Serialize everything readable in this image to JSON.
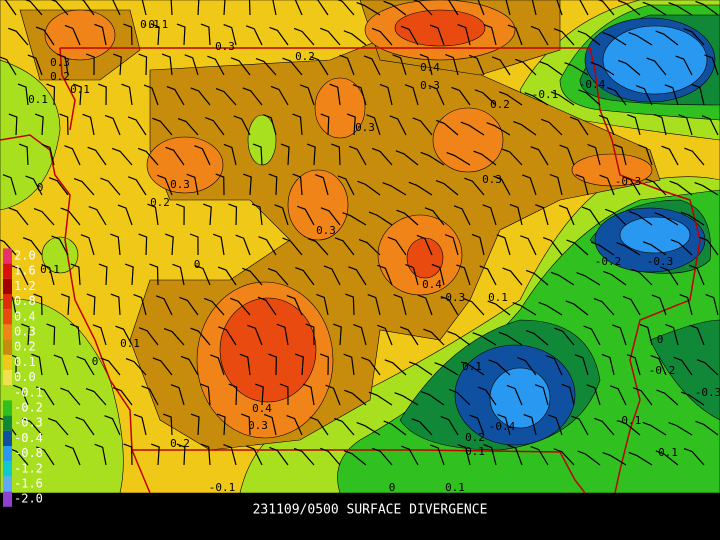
{
  "title": "231109/0500 SURFACE DIVERGENCE",
  "legend": [
    {
      "label": "2.0",
      "color": "#e8306a"
    },
    {
      "label": "1.6",
      "color": "#d81010"
    },
    {
      "label": "1.2",
      "color": "#a00000"
    },
    {
      "label": "0.8",
      "color": "#e02a0a"
    },
    {
      "label": "0.4",
      "color": "#e84a10"
    },
    {
      "label": "0.3",
      "color": "#f08418"
    },
    {
      "label": "0.2",
      "color": "#c88c0c"
    },
    {
      "label": "0.1",
      "color": "#f0c818"
    },
    {
      "label": "0.0",
      "color": "#f0e050"
    },
    {
      "label": "-0.1",
      "color": "#a8e020"
    },
    {
      "label": "-0.2",
      "color": "#30c020"
    },
    {
      "label": "-0.3",
      "color": "#108838"
    },
    {
      "label": "-0.4",
      "color": "#1050a0"
    },
    {
      "label": "-0.8",
      "color": "#2898f0"
    },
    {
      "label": "-1.2",
      "color": "#10c8d0"
    },
    {
      "label": "-1.6",
      "color": "#60a8f8"
    },
    {
      "label": "-2.0",
      "color": "#9040d0"
    }
  ],
  "contour_labels": [
    "0.1",
    "0.3",
    "0.2",
    "0.3",
    "0.2",
    "0.1",
    "0.4",
    "0.3",
    "0.3",
    "0.1",
    "0.2",
    "0.3",
    "0.3",
    "0.2",
    "0",
    "0.3",
    "0.4",
    "-0.3",
    "0",
    "0.1",
    "0.1",
    "0",
    "0.1",
    "0.4",
    "0.3",
    "0.2",
    "-0.1",
    "0",
    "-0.1",
    "-0.4",
    "-0.3",
    "0.2",
    "0.1",
    "-0.2",
    "-0.3",
    "0",
    "-0.2",
    "-0.3",
    "0.1",
    "-0.4",
    "0.1",
    "-0.1",
    "-0.1",
    "0.1"
  ]
}
